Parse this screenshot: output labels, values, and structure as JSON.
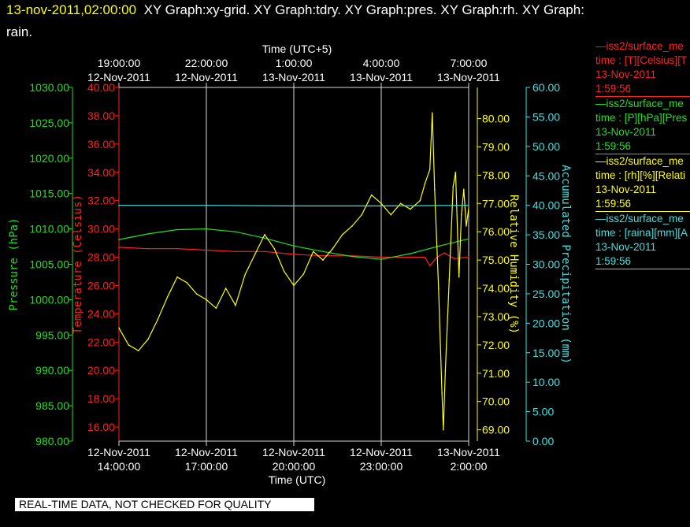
{
  "header": {
    "timestamp": "13-nov-2011,02:00:00",
    "graphs_line1": "XY Graph:xy-grid.  XY Graph:tdry.  XY Graph:pres.  XY Graph:rh.  XY Graph:",
    "graphs_line2": "rain."
  },
  "banner": "REAL-TIME DATA, NOT CHECKED FOR QUALITY",
  "colors": {
    "temperature": "#ff2020",
    "pressure": "#20e020",
    "humidity": "#ffff00",
    "precip": "#40e0e0",
    "grid": "#d8d8d8"
  },
  "chart_data": {
    "type": "line",
    "top_axis": {
      "title": "Time (UTC+5)",
      "ticks": [
        {
          "time": "19:00:00",
          "date": "12-Nov-2011"
        },
        {
          "time": "22:00:00",
          "date": "12-Nov-2011"
        },
        {
          "time": "1:00:00",
          "date": "13-Nov-2011"
        },
        {
          "time": "4:00:00",
          "date": "13-Nov-2011"
        },
        {
          "time": "7:00:00",
          "date": "13-Nov-2011"
        }
      ]
    },
    "bottom_axis": {
      "title": "Time (UTC)",
      "ticks": [
        {
          "date": "12-Nov-2011",
          "time": "14:00:00"
        },
        {
          "date": "12-Nov-2011",
          "time": "17:00:00"
        },
        {
          "date": "12-Nov-2011",
          "time": "20:00:00"
        },
        {
          "date": "12-Nov-2011",
          "time": "23:00:00"
        },
        {
          "date": "13-Nov-2011",
          "time": "2:00:00"
        }
      ],
      "xlim": [
        "2011-11-12 14:00",
        "2011-11-13 02:00"
      ]
    },
    "axes": {
      "pressure": {
        "label": "Pressure (hPa)",
        "ylim": [
          980,
          1030
        ],
        "ticks": [
          "1030.00",
          "1025.00",
          "1020.00",
          "1015.00",
          "1010.00",
          "1005.00",
          "1000.00",
          "995.00",
          "990.00",
          "985.00",
          "980.00"
        ]
      },
      "temperature": {
        "label": "Temperature (Celsius)",
        "ylim": [
          15,
          40
        ],
        "ticks": [
          "40.00",
          "38.00",
          "36.00",
          "34.00",
          "32.00",
          "30.00",
          "28.00",
          "26.00",
          "24.00",
          "22.00",
          "20.00",
          "18.00",
          "16.00"
        ]
      },
      "humidity": {
        "label": "Relative Humidity (%)",
        "ylim": [
          68.6,
          81.1
        ],
        "ticks": [
          "80.00",
          "79.00",
          "78.00",
          "77.00",
          "76.00",
          "75.00",
          "74.00",
          "73.00",
          "72.00",
          "71.00",
          "70.00",
          "69.00"
        ]
      },
      "precip": {
        "label": "Accumulated Precipitation (mm)",
        "ylim": [
          0,
          60
        ],
        "ticks": [
          "60.00",
          "55.00",
          "50.00",
          "45.00",
          "40.00",
          "35.00",
          "30.00",
          "25.00",
          "20.00",
          "15.00",
          "10.00",
          "5.00",
          "0.00"
        ]
      }
    },
    "series": [
      {
        "name": "temperature",
        "values": [
          [
            "2011-11-12 14:00",
            28.7
          ],
          [
            "2011-11-12 15:00",
            28.6
          ],
          [
            "2011-11-12 16:00",
            28.6
          ],
          [
            "2011-11-12 17:00",
            28.5
          ],
          [
            "2011-11-12 18:00",
            28.4
          ],
          [
            "2011-11-12 19:00",
            28.4
          ],
          [
            "2011-11-12 20:00",
            28.2
          ],
          [
            "2011-11-12 21:00",
            28.1
          ],
          [
            "2011-11-12 22:00",
            28.1
          ],
          [
            "2011-11-12 23:00",
            28.0
          ],
          [
            "2011-11-13 00:00",
            28.0
          ],
          [
            "2011-11-13 00:30",
            28.0
          ],
          [
            "2011-11-13 00:40",
            27.4
          ],
          [
            "2011-11-13 00:55",
            28.0
          ],
          [
            "2011-11-13 01:10",
            28.3
          ],
          [
            "2011-11-13 01:30",
            27.9
          ],
          [
            "2011-11-13 02:00",
            28.0
          ]
        ]
      },
      {
        "name": "pressure",
        "values": [
          [
            "2011-11-12 14:00",
            1008.5
          ],
          [
            "2011-11-12 15:00",
            1009.3
          ],
          [
            "2011-11-12 16:00",
            1009.9
          ],
          [
            "2011-11-12 17:00",
            1010.0
          ],
          [
            "2011-11-12 18:00",
            1009.6
          ],
          [
            "2011-11-12 19:00",
            1008.7
          ],
          [
            "2011-11-12 20:00",
            1007.6
          ],
          [
            "2011-11-12 21:00",
            1006.8
          ],
          [
            "2011-11-12 22:00",
            1006.1
          ],
          [
            "2011-11-12 23:00",
            1005.7
          ],
          [
            "2011-11-13 00:00",
            1006.5
          ],
          [
            "2011-11-13 01:00",
            1007.6
          ],
          [
            "2011-11-13 02:00",
            1008.6
          ]
        ]
      },
      {
        "name": "humidity",
        "values": [
          [
            "2011-11-12 14:00",
            72.6
          ],
          [
            "2011-11-12 14:20",
            72.0
          ],
          [
            "2011-11-12 14:40",
            71.8
          ],
          [
            "2011-11-12 15:00",
            72.2
          ],
          [
            "2011-11-12 15:20",
            72.9
          ],
          [
            "2011-11-12 15:40",
            73.7
          ],
          [
            "2011-11-12 16:00",
            74.4
          ],
          [
            "2011-11-12 16:20",
            74.2
          ],
          [
            "2011-11-12 16:40",
            73.8
          ],
          [
            "2011-11-12 17:00",
            73.6
          ],
          [
            "2011-11-12 17:20",
            73.3
          ],
          [
            "2011-11-12 17:40",
            74.0
          ],
          [
            "2011-11-12 18:00",
            73.4
          ],
          [
            "2011-11-12 18:20",
            74.5
          ],
          [
            "2011-11-12 18:40",
            75.2
          ],
          [
            "2011-11-12 19:00",
            75.9
          ],
          [
            "2011-11-12 19:20",
            75.4
          ],
          [
            "2011-11-12 19:40",
            74.6
          ],
          [
            "2011-11-12 20:00",
            74.1
          ],
          [
            "2011-11-12 20:20",
            74.5
          ],
          [
            "2011-11-12 20:40",
            75.3
          ],
          [
            "2011-11-12 21:00",
            75.0
          ],
          [
            "2011-11-12 21:20",
            75.4
          ],
          [
            "2011-11-12 21:40",
            75.9
          ],
          [
            "2011-11-12 22:00",
            76.2
          ],
          [
            "2011-11-12 22:20",
            76.6
          ],
          [
            "2011-11-12 22:40",
            77.3
          ],
          [
            "2011-11-12 23:00",
            77.0
          ],
          [
            "2011-11-12 23:20",
            76.6
          ],
          [
            "2011-11-12 23:40",
            77.0
          ],
          [
            "2011-11-13 00:00",
            76.8
          ],
          [
            "2011-11-13 00:20",
            77.1
          ],
          [
            "2011-11-13 00:30",
            77.7
          ],
          [
            "2011-11-13 00:40",
            78.2
          ],
          [
            "2011-11-13 00:45",
            80.2
          ],
          [
            "2011-11-13 00:50",
            77.5
          ],
          [
            "2011-11-13 00:58",
            74.0
          ],
          [
            "2011-11-13 01:05",
            70.3
          ],
          [
            "2011-11-13 01:08",
            69.0
          ],
          [
            "2011-11-13 01:12",
            71.1
          ],
          [
            "2011-11-13 01:20",
            74.3
          ],
          [
            "2011-11-13 01:28",
            77.6
          ],
          [
            "2011-11-13 01:33",
            78.1
          ],
          [
            "2011-11-13 01:40",
            74.4
          ],
          [
            "2011-11-13 01:45",
            76.6
          ],
          [
            "2011-11-13 01:50",
            77.5
          ],
          [
            "2011-11-13 01:55",
            76.2
          ],
          [
            "2011-11-13 02:00",
            76.8
          ]
        ]
      },
      {
        "name": "precip",
        "values": [
          [
            "2011-11-12 14:00",
            40.0
          ],
          [
            "2011-11-12 17:00",
            40.0
          ],
          [
            "2011-11-12 20:00",
            39.9
          ],
          [
            "2011-11-12 23:00",
            39.9
          ],
          [
            "2011-11-13 02:00",
            40.0
          ]
        ]
      }
    ]
  },
  "legend": [
    {
      "key": "temperature",
      "lines": [
        "—iss2/surface_me",
        "time : [T][Celsius][T",
        "13-Nov-2011",
        "1:59:56"
      ]
    },
    {
      "key": "pressure",
      "lines": [
        "—iss2/surface_me",
        "time : [P][hPa][Pres",
        "13-Nov-2011",
        "1:59:56"
      ]
    },
    {
      "key": "humidity",
      "lines": [
        "—iss2/surface_me",
        "time : [rh][%][Relati",
        "13-Nov-2011",
        "1:59:56"
      ]
    },
    {
      "key": "precip",
      "lines": [
        "—iss2/surface_me",
        "time : [raina][mm][A",
        "13-Nov-2011",
        "1:59:56"
      ]
    }
  ]
}
